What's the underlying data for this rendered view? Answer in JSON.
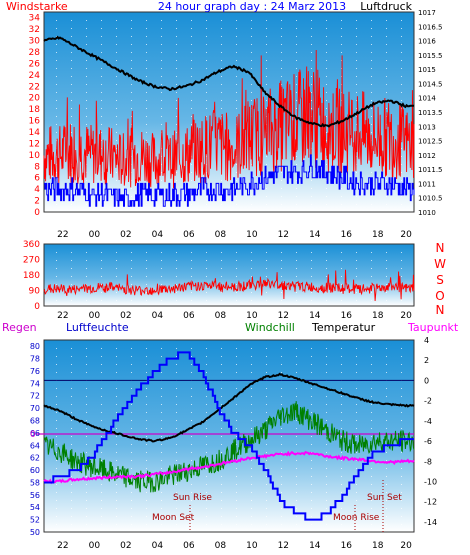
{
  "chart_data": [
    {
      "type": "line",
      "title": "24 hour graph day : 24 Marz 2013",
      "ylabel_left": "Windstarke",
      "ylabel_right": "Luftdruck",
      "x_ticks": [
        "22",
        "00",
        "02",
        "04",
        "06",
        "08",
        "10",
        "12",
        "14",
        "16",
        "18",
        "20"
      ],
      "y_left_ticks": [
        "0",
        "2",
        "4",
        "6",
        "8",
        "10",
        "12",
        "14",
        "16",
        "18",
        "20",
        "22",
        "24",
        "26",
        "28",
        "30",
        "32",
        "34"
      ],
      "y_left_range": [
        0,
        35
      ],
      "y_right_ticks": [
        "1010",
        "1010.5",
        "1011",
        "1011.5",
        "1012",
        "1012.5",
        "1013",
        "1013.5",
        "1014",
        "1014.5",
        "1015",
        "1015.5",
        "1016",
        "1016.5",
        "1017"
      ],
      "y_right_range": [
        1010,
        1017
      ],
      "series": [
        {
          "name": "",
          "color": "#ff0000",
          "axis": "left",
          "hours": [
            0,
            1,
            2,
            3,
            4,
            5,
            6,
            7,
            8,
            9,
            10,
            11,
            12,
            13,
            14,
            15,
            16,
            17,
            18,
            19,
            20,
            21,
            22,
            23
          ],
          "values": [
            10,
            10,
            11,
            10,
            10,
            9,
            10,
            9,
            9,
            10,
            11,
            12,
            11,
            13,
            14,
            15,
            16,
            17,
            15,
            14,
            14,
            13,
            13,
            12
          ]
        },
        {
          "name": "",
          "color": "#0000ff",
          "axis": "left",
          "hours": [
            0,
            1,
            2,
            3,
            4,
            5,
            6,
            7,
            8,
            9,
            10,
            11,
            12,
            13,
            14,
            15,
            16,
            17,
            18,
            19,
            20,
            21,
            22,
            23
          ],
          "values": [
            4,
            4,
            4,
            3,
            3,
            2,
            3,
            3,
            3,
            3,
            4,
            4,
            4,
            5,
            6,
            7,
            7,
            8,
            7,
            6,
            5,
            5,
            5,
            4
          ]
        },
        {
          "name": "",
          "color": "#000000",
          "axis": "right",
          "hours": [
            0,
            1,
            2,
            3,
            4,
            5,
            6,
            7,
            8,
            9,
            10,
            11,
            12,
            13,
            14,
            15,
            16,
            17,
            18,
            19,
            20,
            21,
            22,
            23
          ],
          "values": [
            1016.0,
            1016.1,
            1015.8,
            1015.5,
            1015.2,
            1014.9,
            1014.6,
            1014.4,
            1014.3,
            1014.4,
            1014.6,
            1014.9,
            1015.1,
            1014.9,
            1014.2,
            1013.7,
            1013.3,
            1013.1,
            1013.0,
            1013.2,
            1013.5,
            1013.8,
            1013.9,
            1013.7
          ]
        }
      ]
    },
    {
      "type": "line",
      "ylabel_right": "N W S O N",
      "right_letters": [
        "N",
        "W",
        "S",
        "O",
        "N"
      ],
      "x_ticks": [
        "22",
        "00",
        "02",
        "04",
        "06",
        "08",
        "10",
        "12",
        "14",
        "16",
        "18",
        "20"
      ],
      "y_ticks": [
        "0",
        "90",
        "180",
        "270",
        "360"
      ],
      "y_range": [
        0,
        360
      ],
      "series": [
        {
          "name": "",
          "color": "#ff0000",
          "hours": [
            0,
            2,
            4,
            6,
            8,
            10,
            12,
            14,
            16,
            18,
            20,
            22,
            23
          ],
          "values": [
            100,
            95,
            110,
            90,
            100,
            120,
            110,
            130,
            115,
            105,
            95,
            110,
            100
          ]
        }
      ]
    },
    {
      "type": "line",
      "labels_top": [
        "Regen",
        "Luftfeuchte",
        "Windchill",
        "Temperatur",
        "Taupunkt"
      ],
      "label_colors": [
        "#cc00cc",
        "#0000cc",
        "#008000",
        "#000000",
        "#ff00ff"
      ],
      "x_ticks": [
        "22",
        "00",
        "02",
        "04",
        "06",
        "08",
        "10",
        "12",
        "14",
        "16",
        "18",
        "20"
      ],
      "y_left_ticks": [
        "50",
        "52",
        "54",
        "56",
        "58",
        "60",
        "62",
        "64",
        "66",
        "68",
        "70",
        "72",
        "74",
        "76",
        "78",
        "80"
      ],
      "y_left_range": [
        50,
        81
      ],
      "y_right_ticks": [
        "4",
        "2",
        "0",
        "-2",
        "-4",
        "-6",
        "-8",
        "-10",
        "-12",
        "-14"
      ],
      "y_right_range": [
        -15,
        4
      ],
      "rain_marker": "0",
      "annotations": [
        "Sun Rise",
        "Moon Set",
        "Sun Set",
        "Moon Rise"
      ],
      "series": [
        {
          "name": "Luftfeuchte",
          "color": "#0000ff",
          "axis": "left",
          "hours": [
            0,
            1,
            2,
            3,
            4,
            5,
            6,
            7,
            8,
            9,
            10,
            11,
            12,
            13,
            14,
            15,
            16,
            17,
            18,
            19,
            20,
            21,
            22,
            23
          ],
          "values": [
            58,
            59,
            60,
            62,
            66,
            70,
            73,
            76,
            78,
            79,
            76,
            70,
            66,
            64,
            60,
            55,
            53,
            52,
            53,
            56,
            60,
            63,
            64,
            65
          ]
        },
        {
          "name": "Windchill",
          "color": "#008000",
          "axis": "right",
          "hours": [
            0,
            1,
            2,
            3,
            4,
            5,
            6,
            7,
            8,
            9,
            10,
            11,
            12,
            13,
            14,
            15,
            16,
            17,
            18,
            19,
            20,
            21,
            22,
            23
          ],
          "values": [
            -6.5,
            -7,
            -8,
            -8.5,
            -9,
            -9.5,
            -10,
            -10,
            -9.5,
            -9,
            -8.5,
            -8,
            -7,
            -6,
            -5,
            -3.5,
            -3,
            -4,
            -5,
            -6,
            -6.5,
            -6,
            -6,
            -6
          ]
        },
        {
          "name": "Temperatur",
          "color": "#000000",
          "axis": "right",
          "hours": [
            0,
            1,
            2,
            3,
            4,
            5,
            6,
            7,
            8,
            9,
            10,
            11,
            12,
            13,
            14,
            15,
            16,
            17,
            18,
            19,
            20,
            21,
            22,
            23
          ],
          "values": [
            -2.5,
            -3,
            -3.8,
            -4.5,
            -5,
            -5.4,
            -5.8,
            -6,
            -5.7,
            -5,
            -4.2,
            -3,
            -1.8,
            -0.5,
            0.3,
            0.6,
            0.2,
            -0.3,
            -0.8,
            -1.3,
            -1.8,
            -2.2,
            -2.4,
            -2.5
          ]
        },
        {
          "name": "Taupunkt",
          "color": "#ff00ff",
          "axis": "right",
          "hours": [
            0,
            1,
            2,
            3,
            4,
            5,
            6,
            7,
            8,
            9,
            10,
            11,
            12,
            13,
            14,
            15,
            16,
            17,
            18,
            19,
            20,
            21,
            22,
            23
          ],
          "values": [
            -10,
            -10,
            -9.8,
            -9.7,
            -9.6,
            -9.5,
            -9.5,
            -9.3,
            -9.1,
            -8.8,
            -8.6,
            -8.3,
            -8,
            -7.7,
            -7.5,
            -7.3,
            -7.2,
            -7.2,
            -7.5,
            -7.7,
            -7.8,
            -8,
            -8.1,
            -8
          ]
        }
      ]
    }
  ]
}
